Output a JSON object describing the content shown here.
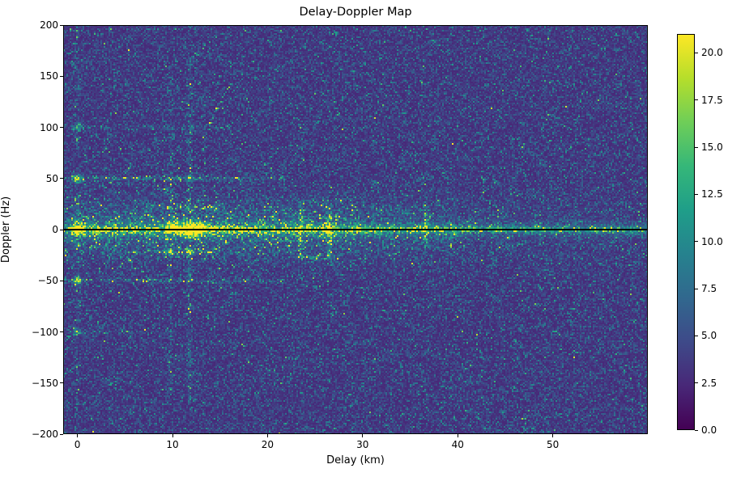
{
  "chart_data": {
    "type": "heatmap",
    "title": "Delay-Doppler Map",
    "xlabel": "Delay (km)",
    "ylabel": "Doppler (Hz)",
    "xlim": [
      -1.5,
      60
    ],
    "ylim": [
      -200,
      200
    ],
    "grid": false,
    "xticks": [
      {
        "value": 0,
        "label": "0"
      },
      {
        "value": 10,
        "label": "10"
      },
      {
        "value": 20,
        "label": "20"
      },
      {
        "value": 30,
        "label": "30"
      },
      {
        "value": 40,
        "label": "40"
      },
      {
        "value": 50,
        "label": "50"
      }
    ],
    "yticks": [
      {
        "value": 200,
        "label": "200"
      },
      {
        "value": 150,
        "label": "150"
      },
      {
        "value": 100,
        "label": "100"
      },
      {
        "value": 50,
        "label": "50"
      },
      {
        "value": 0,
        "label": "0"
      },
      {
        "value": -50,
        "label": "−50"
      },
      {
        "value": -100,
        "label": "−100"
      },
      {
        "value": -150,
        "label": "−150"
      },
      {
        "value": -200,
        "label": "−200"
      }
    ],
    "colorbar": {
      "vmin": 0,
      "vmax": 21,
      "colormap": "viridis",
      "stops": [
        "#440154",
        "#482878",
        "#3e4a89",
        "#31688e",
        "#26828e",
        "#1f9e89",
        "#35b779",
        "#6ece58",
        "#b5de2b",
        "#fde725"
      ],
      "ticks": [
        {
          "value": 0.0,
          "label": "0.0"
        },
        {
          "value": 2.5,
          "label": "2.5"
        },
        {
          "value": 5.0,
          "label": "5.0"
        },
        {
          "value": 7.5,
          "label": "7.5"
        },
        {
          "value": 10.0,
          "label": "10.0"
        },
        {
          "value": 12.5,
          "label": "12.5"
        },
        {
          "value": 15.0,
          "label": "15.0"
        },
        {
          "value": 17.5,
          "label": "17.5"
        },
        {
          "value": 20.0,
          "label": "20.0"
        }
      ]
    },
    "noise": {
      "floor": 2.3,
      "scale": 1.8
    },
    "features": [
      {
        "type": "halo",
        "doppler": 0,
        "sigma_hz": 26,
        "gain": 0.9,
        "delay_profile": [
          [
            -1.5,
            0.7
          ],
          [
            0,
            1.0
          ],
          [
            20,
            1.0
          ],
          [
            32,
            0.8
          ],
          [
            40,
            0.35
          ],
          [
            60,
            0.15
          ]
        ]
      },
      {
        "type": "ridge",
        "doppler": 0,
        "sigma_hz": 6,
        "intensity": 7,
        "delay_profile": [
          [
            -1.5,
            0.5
          ],
          [
            0,
            1.1
          ],
          [
            8,
            0.9
          ],
          [
            10,
            1.4
          ],
          [
            13,
            1.5
          ],
          [
            20,
            0.9
          ],
          [
            23,
            1.1
          ],
          [
            27,
            1.2
          ],
          [
            30,
            0.8
          ],
          [
            38,
            0.8
          ],
          [
            42,
            0.5
          ],
          [
            60,
            0.45
          ]
        ]
      },
      {
        "type": "ridge",
        "doppler": 0,
        "sigma_hz": 2.2,
        "intensity": 8,
        "delay_profile": [
          [
            -1.5,
            0.8
          ],
          [
            60,
            0.8
          ]
        ]
      },
      {
        "type": "hline",
        "doppler": 50,
        "delay_range": [
          -1.5,
          22
        ],
        "gain": 1.1,
        "dash": 0.45
      },
      {
        "type": "hline",
        "doppler": -50,
        "delay_range": [
          -1.5,
          22
        ],
        "gain": 1.1,
        "dash": 0.45
      },
      {
        "type": "hline",
        "doppler": 100,
        "delay_range": [
          -1.5,
          16
        ],
        "gain": 0.7,
        "dash": 0.35
      },
      {
        "type": "hline",
        "doppler": -100,
        "delay_range": [
          -1.5,
          8
        ],
        "gain": 0.55,
        "dash": 0.3
      },
      {
        "type": "hline",
        "doppler": 22,
        "delay_range": [
          8,
          15
        ],
        "gain": 0.8,
        "dash": 0.4
      },
      {
        "type": "hline",
        "doppler": -22,
        "delay_range": [
          8,
          15
        ],
        "gain": 0.9,
        "dash": 0.4
      },
      {
        "type": "hline",
        "doppler": -27,
        "delay_range": [
          23,
          28
        ],
        "gain": 0.8,
        "dash": 0.5
      },
      {
        "type": "hline",
        "doppler": 27,
        "delay_range": [
          23,
          28
        ],
        "gain": 0.6,
        "dash": 0.4
      },
      {
        "type": "vline",
        "delay": 0,
        "doppler_range": [
          -200,
          200
        ],
        "gain": 0.5,
        "dash": 0.3
      },
      {
        "type": "vline",
        "delay": 9.8,
        "doppler_range": [
          -160,
          160
        ],
        "gain": 0.55,
        "dash": 0.35
      },
      {
        "type": "vline",
        "delay": 11.8,
        "doppler_range": [
          -170,
          170
        ],
        "gain": 0.7,
        "dash": 0.4
      },
      {
        "type": "streak",
        "delay": 23.5,
        "doppler_range": [
          -28,
          28
        ],
        "gain": 1.6,
        "dash": 0.5
      },
      {
        "type": "streak",
        "delay": 26.5,
        "doppler_range": [
          -30,
          25
        ],
        "gain": 1.5,
        "dash": 0.5
      },
      {
        "type": "streak",
        "delay": 36.6,
        "doppler_range": [
          -18,
          26
        ],
        "gain": 0.9,
        "dash": 0.4
      },
      {
        "type": "spot",
        "delay": 0,
        "doppler": 0,
        "rd": 0.5,
        "rf": 5,
        "value": 16
      },
      {
        "type": "spot",
        "delay": 0,
        "doppler": 50,
        "rd": 0.4,
        "rf": 4,
        "value": 12
      },
      {
        "type": "spot",
        "delay": 0,
        "doppler": -50,
        "rd": 0.4,
        "rf": 4,
        "value": 12
      },
      {
        "type": "spot",
        "delay": 0,
        "doppler": 100,
        "rd": 0.35,
        "rf": 3,
        "value": 9
      },
      {
        "type": "spot",
        "delay": 0,
        "doppler": -100,
        "rd": 0.35,
        "rf": 3,
        "value": 8
      },
      {
        "type": "spot",
        "delay": 11.9,
        "doppler": 0,
        "rd": 0.9,
        "rf": 6,
        "value": 19
      },
      {
        "type": "spot",
        "delay": 10.2,
        "doppler": 3,
        "rd": 0.6,
        "rf": 5,
        "value": 15
      },
      {
        "type": "spot",
        "delay": 13.1,
        "doppler": 2,
        "rd": 0.5,
        "rf": 4,
        "value": 12
      },
      {
        "type": "spot",
        "delay": 9.8,
        "doppler": -22,
        "rd": 0.3,
        "rf": 3,
        "value": 10
      },
      {
        "type": "spot",
        "delay": 11.8,
        "doppler": -22,
        "rd": 0.3,
        "rf": 3,
        "value": 11
      },
      {
        "type": "spot",
        "delay": 11.8,
        "doppler": 50,
        "rd": 0.4,
        "rf": 3,
        "value": 9
      },
      {
        "type": "arc",
        "doppler_start": 76,
        "doppler_end": 142,
        "delay_start": 13.3,
        "delay_span": 2.9,
        "exponent": 1.7,
        "value": 13,
        "dash": 0.65
      },
      {
        "type": "darkline",
        "doppler": 0,
        "half_width_hz": 1.0
      }
    ]
  }
}
